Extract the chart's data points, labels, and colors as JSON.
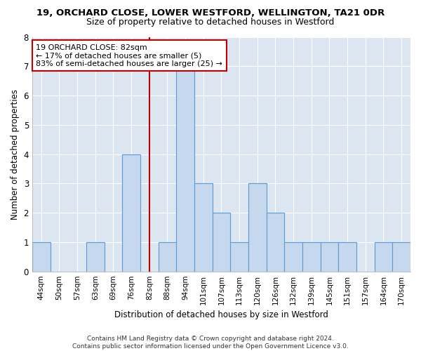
{
  "title": "19, ORCHARD CLOSE, LOWER WESTFORD, WELLINGTON, TA21 0DR",
  "subtitle": "Size of property relative to detached houses in Westford",
  "xlabel": "Distribution of detached houses by size in Westford",
  "ylabel": "Number of detached properties",
  "categories": [
    "44sqm",
    "50sqm",
    "57sqm",
    "63sqm",
    "69sqm",
    "76sqm",
    "82sqm",
    "88sqm",
    "94sqm",
    "101sqm",
    "107sqm",
    "113sqm",
    "120sqm",
    "126sqm",
    "132sqm",
    "139sqm",
    "145sqm",
    "151sqm",
    "157sqm",
    "164sqm",
    "170sqm"
  ],
  "values": [
    1,
    0,
    0,
    1,
    0,
    4,
    0,
    1,
    7,
    3,
    2,
    1,
    3,
    2,
    1,
    1,
    1,
    1,
    0,
    1,
    1
  ],
  "bar_color": "#c5d8ed",
  "bar_edge_color": "#5b9bd5",
  "marker_index": 6,
  "marker_line_color": "#c00000",
  "annotation_line1": "19 ORCHARD CLOSE: 82sqm",
  "annotation_line2": "← 17% of detached houses are smaller (5)",
  "annotation_line3": "83% of semi-detached houses are larger (25) →",
  "ylim": [
    0,
    8
  ],
  "yticks": [
    0,
    1,
    2,
    3,
    4,
    5,
    6,
    7,
    8
  ],
  "footer_line1": "Contains HM Land Registry data © Crown copyright and database right 2024.",
  "footer_line2": "Contains public sector information licensed under the Open Government Licence v3.0.",
  "plot_bg_color": "#dce6f1",
  "fig_bg_color": "#ffffff",
  "grid_color": "#ffffff",
  "title_fontsize": 9.5,
  "subtitle_fontsize": 9,
  "axis_label_fontsize": 8.5,
  "tick_fontsize": 7.5,
  "annotation_fontsize": 8,
  "footer_fontsize": 6.5
}
